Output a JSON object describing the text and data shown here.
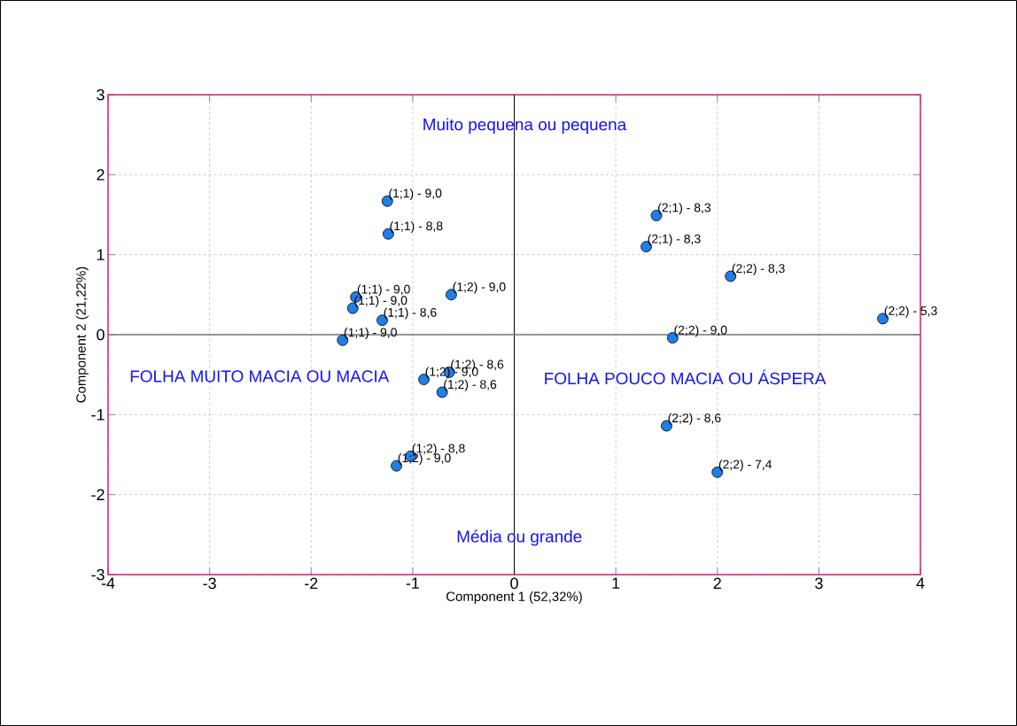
{
  "chart_data": {
    "type": "scatter",
    "xlabel": "Component 1 (52,32%)",
    "ylabel": "Component 2  (21,22%)",
    "x": [
      -1.25,
      -1.24,
      -1.56,
      -1.59,
      -1.3,
      -1.69,
      -0.62,
      -0.64,
      -0.89,
      -0.71,
      -1.02,
      -1.16,
      1.4,
      1.3,
      2.13,
      3.63,
      1.56,
      1.5,
      2.0
    ],
    "series": [
      {
        "color": "#1e7fe8",
        "values": [
          1.67,
          1.26,
          0.47,
          0.33,
          0.18,
          -0.07,
          0.5,
          -0.47,
          -0.56,
          -0.72,
          -1.52,
          -1.64,
          1.49,
          1.1,
          0.73,
          0.2,
          -0.04,
          -1.14,
          -1.72
        ],
        "value_labels": [
          "(1;1) - 9,0",
          "(1;1) - 8,8",
          "(1;1) - 9,0",
          "(1;1) - 9,0",
          "(1;1) - 8,6",
          "(1;1) - 9,0",
          "(1;2) - 9,0",
          "(1;2) - 8,6",
          "(1;2) - 9,0",
          "(1;2) - 8,6",
          "(1;2) - 8,8",
          "(1;2) - 9,0",
          "(2;1) - 8,3",
          "(2;1) - 8,3",
          "(2;2) - 8,3",
          "(2;2) - 5,3",
          "(2;2) - 9,0",
          "(2;2) - 8,6",
          "(2;2) - 7,4"
        ]
      }
    ],
    "annotations": [
      "Muito pequena ou pequena",
      "FOLHA MUITO MACIA OU MACIA",
      "FOLHA POUCO MACIA OU ÁSPERA",
      "Média ou grande"
    ],
    "ref_lines": [
      {
        "axis": "x",
        "value": 0,
        "color": "#000000"
      },
      {
        "axis": "y",
        "value": 0,
        "color": "#777777"
      }
    ],
    "xlim": [
      -4,
      4
    ],
    "ylim": [
      -3,
      3
    ],
    "xticks": [
      -4,
      -3,
      -2,
      -1,
      0,
      1,
      2,
      3,
      4
    ],
    "yticks": [
      -3,
      -2,
      -1,
      0,
      1,
      2,
      3
    ],
    "grid": true,
    "marker": "circle"
  }
}
